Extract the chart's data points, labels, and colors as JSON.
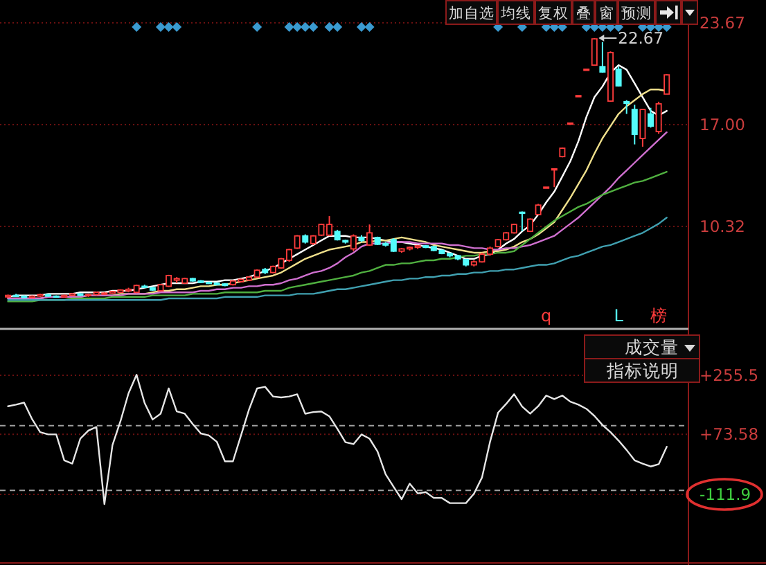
{
  "chart_data": [
    {
      "type": "candlestick",
      "categories": [
        null,
        null,
        null,
        null,
        null,
        null,
        null,
        null,
        null,
        null,
        null,
        null,
        null,
        null,
        null,
        null,
        null,
        null,
        null,
        null,
        null,
        null,
        null,
        null,
        null,
        null,
        null,
        null,
        null,
        null,
        null,
        null,
        null,
        null,
        null,
        null,
        null,
        null,
        null,
        null,
        null,
        null,
        null,
        null,
        null,
        null,
        null,
        null,
        null,
        null,
        null,
        null,
        null,
        null,
        null,
        null,
        null,
        null,
        null,
        null,
        null,
        null,
        null,
        null,
        null,
        null,
        null,
        "q",
        null,
        null,
        null,
        null,
        null,
        null,
        null,
        null,
        "L",
        null,
        null,
        null,
        null,
        "榜",
        null
      ],
      "ohlc": [
        [
          5.7,
          5.85,
          5.65,
          5.8
        ],
        [
          5.8,
          5.9,
          5.7,
          5.75
        ],
        [
          5.75,
          5.8,
          5.6,
          5.65
        ],
        [
          5.65,
          5.8,
          5.6,
          5.75
        ],
        [
          5.75,
          5.9,
          5.7,
          5.85
        ],
        [
          5.85,
          5.9,
          5.7,
          5.75
        ],
        [
          5.75,
          5.8,
          5.65,
          5.7
        ],
        [
          5.7,
          5.85,
          5.65,
          5.8
        ],
        [
          5.8,
          5.95,
          5.75,
          5.9
        ],
        [
          5.9,
          5.95,
          5.75,
          5.8
        ],
        [
          5.8,
          5.9,
          5.7,
          5.85
        ],
        [
          5.85,
          6.05,
          5.8,
          6.0
        ],
        [
          5.9,
          6.0,
          5.85,
          5.95
        ],
        [
          5.95,
          6.1,
          5.9,
          6.05
        ],
        [
          6.0,
          6.2,
          5.95,
          6.15
        ],
        [
          6.1,
          6.3,
          6.0,
          6.2
        ],
        [
          6.0,
          6.5,
          5.95,
          6.45
        ],
        [
          6.4,
          6.5,
          6.3,
          6.35
        ],
        [
          6.3,
          6.35,
          6.1,
          6.15
        ],
        [
          6.1,
          6.55,
          6.05,
          6.5
        ],
        [
          6.4,
          7.15,
          6.35,
          7.1
        ],
        [
          6.8,
          7.0,
          6.6,
          6.9
        ],
        [
          6.6,
          6.95,
          6.55,
          6.9
        ],
        [
          6.9,
          6.95,
          6.7,
          6.75
        ],
        [
          6.75,
          6.8,
          6.6,
          6.65
        ],
        [
          6.65,
          6.7,
          6.55,
          6.6
        ],
        [
          6.6,
          6.65,
          6.45,
          6.5
        ],
        [
          6.55,
          6.6,
          6.4,
          6.45
        ],
        [
          6.5,
          6.8,
          6.45,
          6.75
        ],
        [
          6.7,
          6.9,
          6.65,
          6.85
        ],
        [
          6.8,
          7.05,
          6.75,
          7.0
        ],
        [
          7.0,
          7.5,
          6.95,
          7.45
        ],
        [
          7.5,
          7.6,
          7.2,
          7.3
        ],
        [
          7.3,
          7.75,
          7.25,
          7.7
        ],
        [
          7.6,
          8.25,
          7.55,
          8.2
        ],
        [
          8.1,
          8.85,
          8.0,
          8.8
        ],
        [
          8.9,
          9.75,
          8.85,
          9.7
        ],
        [
          9.7,
          9.8,
          9.2,
          9.3
        ],
        [
          9.2,
          9.75,
          9.1,
          9.7
        ],
        [
          9.75,
          10.5,
          9.7,
          10.45
        ],
        [
          9.75,
          11.0,
          9.7,
          10.45
        ],
        [
          9.99,
          10.1,
          9.4,
          9.45
        ],
        [
          9.4,
          9.45,
          9.2,
          9.3
        ],
        [
          8.85,
          9.8,
          8.7,
          9.7
        ],
        [
          9.6,
          9.75,
          9.3,
          9.4
        ],
        [
          9.1,
          10.45,
          9.05,
          9.9
        ],
        [
          9.6,
          9.65,
          9.1,
          9.15
        ],
        [
          9.2,
          9.3,
          9.0,
          9.1
        ],
        [
          9.45,
          9.55,
          8.65,
          8.7
        ],
        [
          8.7,
          8.9,
          8.6,
          8.85
        ],
        [
          8.85,
          9.0,
          8.75,
          8.95
        ],
        [
          8.95,
          9.1,
          8.85,
          9.05
        ],
        [
          9.05,
          9.1,
          8.9,
          8.95
        ],
        [
          9.0,
          9.05,
          8.7,
          8.75
        ],
        [
          8.75,
          8.8,
          8.5,
          8.55
        ],
        [
          8.55,
          8.6,
          8.3,
          8.4
        ],
        [
          8.4,
          8.45,
          8.1,
          8.2
        ],
        [
          8.15,
          8.2,
          7.7,
          7.8
        ],
        [
          7.8,
          8.1,
          7.7,
          8.0
        ],
        [
          8.0,
          8.6,
          7.95,
          8.5
        ],
        [
          8.5,
          9.0,
          8.4,
          8.9
        ],
        [
          9.0,
          9.5,
          8.95,
          9.45
        ],
        [
          9.45,
          9.95,
          9.4,
          9.9
        ],
        [
          9.9,
          10.5,
          9.85,
          10.45
        ],
        [
          11.25,
          11.3,
          10.0,
          11.2
        ],
        [
          10.0,
          10.85,
          9.95,
          10.8
        ],
        [
          11.1,
          11.8,
          11.05,
          11.72
        ],
        [
          12.9,
          12.9,
          12.9,
          12.9
        ],
        [
          14.1,
          14.1,
          12.9,
          14.1
        ],
        [
          14.9,
          15.5,
          14.85,
          15.45
        ],
        [
          17.1,
          17.1,
          17.1,
          17.1
        ],
        [
          18.9,
          18.9,
          18.9,
          18.9
        ],
        [
          20.63,
          20.63,
          20.63,
          20.63
        ],
        [
          20.9,
          22.67,
          20.9,
          22.62
        ],
        [
          20.8,
          22.4,
          20.4,
          20.45
        ],
        [
          18.54,
          21.8,
          18.5,
          21.72
        ],
        [
          20.63,
          20.8,
          19.5,
          19.54
        ],
        [
          18.5,
          18.6,
          17.7,
          18.4
        ],
        [
          17.99,
          18.3,
          15.7,
          16.36
        ],
        [
          16.09,
          18.0,
          15.55,
          17.99
        ],
        [
          17.7,
          18.1,
          16.8,
          16.9
        ],
        [
          16.54,
          18.5,
          16.4,
          18.36
        ],
        [
          19.0,
          20.3,
          19.0,
          20.26
        ]
      ],
      "colors": [
        "#ff3c3c",
        "#54fcfc",
        "#54fcfc",
        "#ff3c3c",
        "#ff3c3c",
        "#54fcfc",
        "#54fcfc",
        "#ff3c3c",
        "#ff3c3c",
        "#54fcfc",
        "#ff3c3c",
        "#ff3c3c",
        "#ff3c3c",
        "#ff3c3c",
        "#ff3c3c",
        "#ff3c3c",
        "#ff3c3c",
        "#54fcfc",
        "#54fcfc",
        "#ff3c3c",
        "#ff3c3c",
        "#ff3c3c",
        "#ff3c3c",
        "#54fcfc",
        "#54fcfc",
        "#54fcfc",
        "#54fcfc",
        "#54fcfc",
        "#ff3c3c",
        "#ff3c3c",
        "#ff3c3c",
        "#ff3c3c",
        "#54fcfc",
        "#ff3c3c",
        "#ff3c3c",
        "#ff3c3c",
        "#ff3c3c",
        "#54fcfc",
        "#ff3c3c",
        "#ff3c3c",
        "#ff3c3c",
        "#54fcfc",
        "#54fcfc",
        "#ff3c3c",
        "#54fcfc",
        "#ff3c3c",
        "#54fcfc",
        "#54fcfc",
        "#54fcfc",
        "#ff3c3c",
        "#ff3c3c",
        "#ff3c3c",
        "#54fcfc",
        "#54fcfc",
        "#54fcfc",
        "#54fcfc",
        "#54fcfc",
        "#54fcfc",
        "#ff3c3c",
        "#ff3c3c",
        "#ff3c3c",
        "#ff3c3c",
        "#ff3c3c",
        "#ff3c3c",
        "#54fcfc",
        "#ff3c3c",
        "#ff3c3c",
        "#ff3c3c",
        "#ff3c3c",
        "#ff3c3c",
        "#ff3c3c",
        "#ff3c3c",
        "#ff3c3c",
        "#ff3c3c",
        "#54fcfc",
        "#ff3c3c",
        "#54fcfc",
        "#54fcfc",
        "#54fcfc",
        "#ff3c3c",
        "#54fcfc",
        "#ff3c3c",
        "#ff3c3c"
      ],
      "series": [
        {
          "type": "line",
          "color": "#ffffff",
          "values": [
            5.7,
            5.8,
            5.8,
            5.8,
            5.8,
            5.9,
            5.9,
            5.9,
            5.9,
            6.0,
            6.0,
            6.0,
            6.0,
            6.1,
            6.1,
            6.1,
            6.2,
            6.3,
            6.4,
            6.5,
            6.6,
            6.6,
            6.6,
            6.6,
            6.7,
            6.7,
            6.7,
            6.8,
            6.8,
            6.9,
            7.0,
            7.2,
            7.4,
            7.6,
            7.9,
            8.2,
            8.5,
            8.8,
            9.1,
            9.4,
            9.7,
            9.7,
            9.7,
            9.6,
            9.6,
            9.6,
            9.5,
            9.4,
            9.3,
            9.3,
            9.2,
            9.1,
            9.0,
            8.9,
            8.8,
            8.6,
            8.4,
            8.2,
            8.2,
            8.4,
            8.5,
            8.8,
            9.2,
            9.5,
            10.0,
            10.4,
            11.1,
            11.9,
            12.6,
            13.6,
            14.6,
            15.9,
            17.5,
            18.8,
            19.5,
            20.4,
            20.9,
            20.6,
            19.7,
            18.8,
            17.9,
            17.6,
            17.9
          ]
        },
        {
          "type": "line",
          "color": "#f0e08c",
          "values": [
            5.6,
            5.6,
            5.6,
            5.6,
            5.6,
            5.7,
            5.7,
            5.7,
            5.7,
            5.7,
            5.8,
            5.8,
            5.8,
            5.8,
            5.9,
            5.9,
            5.9,
            5.9,
            6.0,
            6.1,
            6.1,
            6.2,
            6.2,
            6.3,
            6.4,
            6.4,
            6.5,
            6.5,
            6.6,
            6.7,
            6.8,
            6.9,
            7.0,
            7.1,
            7.3,
            7.6,
            7.9,
            8.2,
            8.4,
            8.6,
            8.8,
            8.9,
            9.0,
            9.1,
            9.3,
            9.3,
            9.4,
            9.4,
            9.5,
            9.6,
            9.5,
            9.4,
            9.3,
            9.1,
            9.0,
            8.9,
            8.8,
            8.7,
            8.6,
            8.6,
            8.7,
            8.7,
            8.8,
            9.0,
            9.3,
            9.5,
            9.8,
            10.2,
            10.6,
            11.4,
            12.2,
            13.1,
            14.0,
            15.1,
            16.1,
            16.9,
            17.7,
            18.2,
            18.6,
            19.0,
            19.3,
            19.3,
            19.2
          ]
        },
        {
          "type": "line",
          "color": "#d070d0",
          "values": [
            5.6,
            5.6,
            5.6,
            5.6,
            5.6,
            5.7,
            5.7,
            5.7,
            5.7,
            5.7,
            5.8,
            5.8,
            5.8,
            5.8,
            5.8,
            5.9,
            5.9,
            5.9,
            5.9,
            6.0,
            6.0,
            6.0,
            6.0,
            6.0,
            6.1,
            6.1,
            6.2,
            6.2,
            6.3,
            6.3,
            6.4,
            6.4,
            6.5,
            6.5,
            6.6,
            6.8,
            6.9,
            7.1,
            7.3,
            7.4,
            7.6,
            7.9,
            8.3,
            8.6,
            9.0,
            9.2,
            9.2,
            9.2,
            9.3,
            9.3,
            9.3,
            9.2,
            9.2,
            9.2,
            9.2,
            9.1,
            9.1,
            9.0,
            8.9,
            8.9,
            8.8,
            8.8,
            8.9,
            8.9,
            9.0,
            9.1,
            9.3,
            9.5,
            9.7,
            10.1,
            10.5,
            10.9,
            11.4,
            11.9,
            12.4,
            12.9,
            13.5,
            14.0,
            14.5,
            15.0,
            15.5,
            16.0,
            16.5
          ]
        },
        {
          "type": "line",
          "color": "#50b040",
          "values": [
            5.4,
            5.4,
            5.4,
            5.4,
            5.5,
            5.5,
            5.5,
            5.5,
            5.6,
            5.6,
            5.6,
            5.6,
            5.6,
            5.7,
            5.7,
            5.7,
            5.7,
            5.7,
            5.8,
            5.8,
            5.8,
            5.8,
            5.8,
            5.9,
            5.9,
            5.9,
            5.9,
            6.0,
            6.0,
            6.0,
            6.0,
            6.0,
            6.1,
            6.1,
            6.1,
            6.3,
            6.4,
            6.5,
            6.6,
            6.7,
            6.8,
            6.9,
            7.0,
            7.1,
            7.3,
            7.4,
            7.6,
            7.8,
            7.8,
            7.9,
            7.9,
            8.0,
            8.1,
            8.1,
            8.2,
            8.2,
            8.3,
            8.4,
            8.4,
            8.5,
            8.5,
            8.6,
            8.6,
            8.7,
            9.1,
            9.5,
            9.9,
            10.3,
            10.7,
            11.0,
            11.3,
            11.6,
            11.8,
            12.1,
            12.4,
            12.6,
            12.8,
            13.0,
            13.2,
            13.3,
            13.5,
            13.7,
            13.9
          ]
        },
        {
          "type": "line",
          "color": "#40a0b0",
          "values": [
            5.5,
            5.5,
            5.5,
            5.5,
            5.5,
            5.5,
            5.5,
            5.5,
            5.5,
            5.5,
            5.5,
            5.5,
            5.5,
            5.5,
            5.5,
            5.5,
            5.5,
            5.5,
            5.5,
            5.5,
            5.6,
            5.6,
            5.6,
            5.6,
            5.6,
            5.6,
            5.6,
            5.7,
            5.7,
            5.7,
            5.7,
            5.7,
            5.8,
            5.8,
            5.8,
            5.8,
            5.9,
            5.9,
            5.9,
            6.0,
            6.1,
            6.2,
            6.2,
            6.3,
            6.4,
            6.5,
            6.6,
            6.7,
            6.8,
            6.8,
            6.9,
            6.9,
            7.0,
            7.0,
            7.1,
            7.1,
            7.2,
            7.2,
            7.3,
            7.3,
            7.4,
            7.4,
            7.5,
            7.5,
            7.6,
            7.7,
            7.8,
            7.8,
            7.9,
            8.1,
            8.3,
            8.4,
            8.6,
            8.8,
            9.0,
            9.1,
            9.3,
            9.5,
            9.7,
            9.9,
            10.2,
            10.5,
            10.9
          ]
        },
        {
          "type": "scatter",
          "color": "#3a9ad0",
          "marker": "diamond",
          "values": [
            null,
            null,
            null,
            null,
            null,
            null,
            null,
            null,
            null,
            null,
            null,
            null,
            null,
            null,
            null,
            null,
            23.4,
            null,
            null,
            23.4,
            23.4,
            23.4,
            null,
            null,
            null,
            null,
            null,
            null,
            null,
            null,
            null,
            23.4,
            null,
            null,
            null,
            23.4,
            23.4,
            23.4,
            23.4,
            null,
            23.4,
            23.4,
            null,
            null,
            23.4,
            23.4,
            null,
            null,
            null,
            null,
            null,
            null,
            null,
            null,
            null,
            null,
            null,
            null,
            null,
            null,
            null,
            23.4,
            null,
            null,
            23.4,
            null,
            null,
            23.4,
            23.4,
            23.4,
            null,
            null,
            23.4,
            23.4,
            23.4,
            23.4,
            23.4,
            null,
            null,
            23.4,
            23.4,
            23.4,
            23.4
          ]
        }
      ],
      "ylim": [
        3.83,
        25.17
      ],
      "yticks": [
        23.67,
        {
          "value": 17,
          "label": "17.00"
        },
        10.32
      ],
      "grid": "y",
      "annotations": [
        "加自选",
        "均线",
        "复权",
        "叠",
        "窗",
        "预测",
        {
          "text": "22.67",
          "y": 22.67
        }
      ]
    },
    {
      "type": "line",
      "color": "#e6e6e6",
      "categories": [
        null,
        null,
        null,
        null,
        null,
        null,
        null,
        null,
        null,
        null,
        null,
        null,
        null,
        null,
        null,
        null,
        null,
        null,
        null,
        null,
        null,
        null,
        null,
        null,
        null,
        null,
        null,
        null,
        null,
        null,
        null,
        null,
        null,
        null,
        null,
        null,
        null,
        null,
        null,
        null,
        null,
        null,
        null,
        null,
        null,
        null,
        null,
        null,
        null,
        null,
        null,
        null,
        null,
        null,
        null,
        null,
        null,
        null,
        null,
        null,
        null,
        null,
        null,
        null,
        null,
        null,
        null,
        null,
        null,
        null,
        null,
        null,
        null,
        null,
        null,
        null,
        null,
        null,
        null,
        null,
        null,
        null,
        null
      ],
      "values": [
        160,
        165,
        171,
        120,
        80,
        73,
        73,
        -7,
        -17,
        60,
        85,
        96,
        -142,
        40,
        114,
        200,
        257,
        170,
        119,
        137,
        215,
        144,
        137,
        105,
        76,
        70,
        50,
        -10,
        -10,
        70,
        150,
        215,
        220,
        190,
        187,
        190,
        197,
        137,
        142,
        144,
        129,
        90,
        49,
        43,
        73,
        60,
        20,
        -50,
        -89,
        -127,
        -79,
        -109,
        -105,
        -123,
        -123,
        -139,
        -139,
        -139,
        -110,
        -60,
        50,
        140,
        167,
        197,
        159,
        137,
        160,
        193,
        182,
        193,
        174,
        165,
        152,
        130,
        102,
        80,
        54,
        25,
        -7,
        -17,
        -26,
        -19,
        35
      ],
      "ylim": [
        -330,
        388
      ],
      "yticks": [
        {
          "value": 255.5,
          "label": "+255.5"
        },
        {
          "value": 73.58,
          "label": "+73.58"
        },
        -111.9
      ],
      "grid": "y",
      "tick_labels": "y",
      "ref_lines": [
        {
          "axis": "y",
          "value": 100,
          "line_style": "dashed",
          "color": "#a0a0a0"
        },
        {
          "axis": "y",
          "value": -100,
          "line_style": "dashed",
          "color": "#a0a0a0"
        }
      ],
      "annotations": [
        "成交量",
        "指标说明"
      ]
    }
  ]
}
